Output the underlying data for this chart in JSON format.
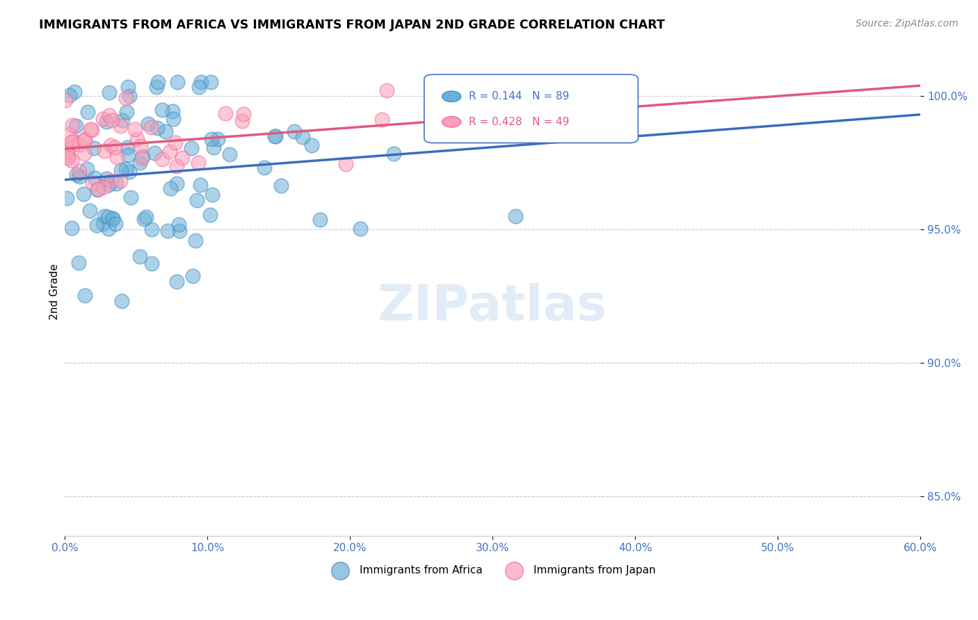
{
  "title": "IMMIGRANTS FROM AFRICA VS IMMIGRANTS FROM JAPAN 2ND GRADE CORRELATION CHART",
  "source": "Source: ZipAtlas.com",
  "ylabel": "2nd Grade",
  "xmin": 0.0,
  "xmax": 0.6,
  "ymin": 0.835,
  "ymax": 1.018,
  "africa_color": "#6baed6",
  "africa_edge": "#4292c6",
  "japan_color": "#fa9fb5",
  "japan_edge": "#f768a1",
  "africa_R": 0.144,
  "africa_N": 89,
  "japan_R": 0.428,
  "japan_N": 49,
  "trend_blue": "#3a6dbf",
  "trend_pink": "#e05a7a",
  "watermark": "ZIPatlas",
  "legend_label_africa": "Immigrants from Africa",
  "legend_label_japan": "Immigrants from Japan"
}
